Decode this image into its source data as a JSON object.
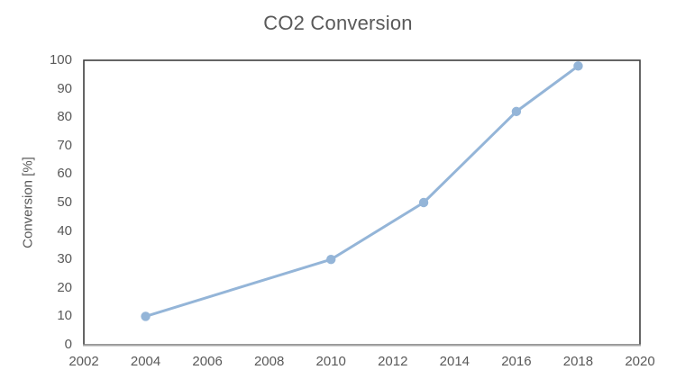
{
  "chart_data": {
    "type": "line",
    "title": "CO2 Conversion",
    "xlabel": "",
    "ylabel": "Conversion [%]",
    "x": [
      2004,
      2010,
      2013,
      2016,
      2018
    ],
    "y": [
      10,
      30,
      50,
      82,
      98
    ],
    "series": [
      {
        "name": "CO2 Conversion",
        "x": [
          2004,
          2010,
          2013,
          2016,
          2018
        ],
        "values": [
          10,
          30,
          50,
          82,
          98
        ]
      }
    ],
    "xlim": [
      2002,
      2020
    ],
    "ylim": [
      0,
      100
    ],
    "x_ticks": [
      2002,
      2004,
      2006,
      2008,
      2010,
      2012,
      2014,
      2016,
      2018,
      2020
    ],
    "y_ticks": [
      0,
      10,
      20,
      30,
      40,
      50,
      60,
      70,
      80,
      90,
      100
    ],
    "grid": false,
    "legend": false,
    "marker": "circle",
    "colors": {
      "series": "#94B5D8",
      "plot_border": "#3F3F3F",
      "axis_line": "#A6A6A6",
      "text": "#595959"
    }
  }
}
